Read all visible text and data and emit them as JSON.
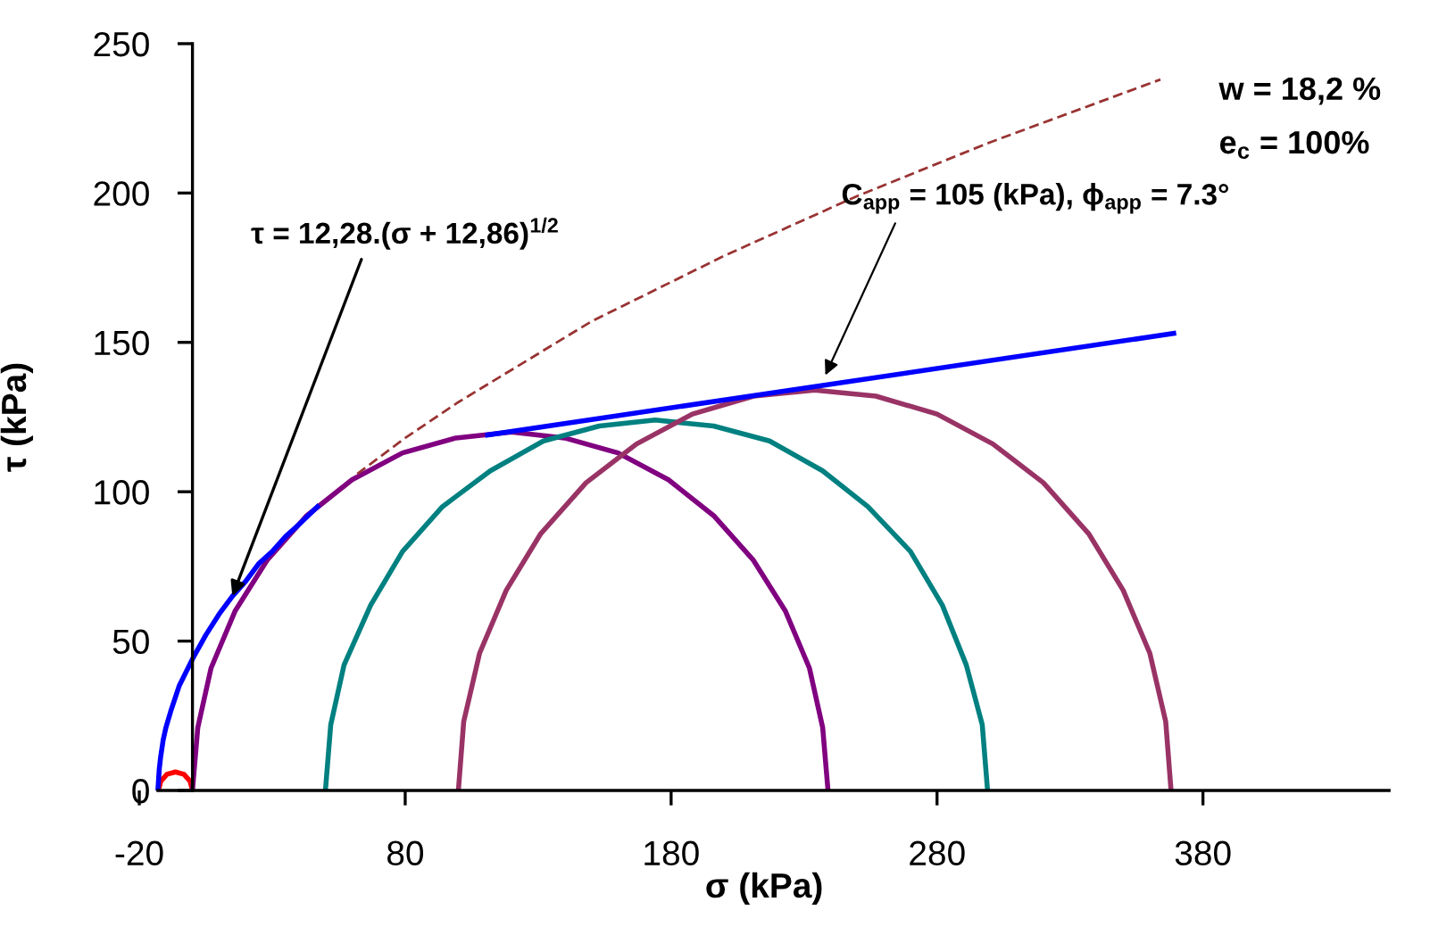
{
  "chart_data": {
    "type": "line",
    "xlabel": "σ (kPa)",
    "ylabel": "τ (kPa)",
    "xlim": [
      -20,
      450
    ],
    "ylim": [
      0,
      250
    ],
    "xticks": [
      -20,
      80,
      180,
      280,
      380
    ],
    "yticks": [
      0,
      50,
      100,
      150,
      200,
      250
    ],
    "grid": false,
    "legend": false,
    "marker": "none",
    "series": [
      {
        "color": "#ff0000",
        "x": [
          -12.8,
          -11.9,
          -9.6,
          -6.4,
          -3.2,
          -0.9,
          0
        ],
        "values": [
          0,
          3.1,
          5.4,
          6.2,
          5.4,
          3.1,
          0
        ]
      },
      {
        "color": "#800080",
        "x": [
          0,
          2,
          7,
          16,
          28,
          43,
          60,
          79,
          99,
          120,
          140,
          160,
          179,
          196,
          211,
          223,
          232,
          237,
          239
        ],
        "values": [
          0,
          21,
          41,
          60,
          77,
          92,
          104,
          113,
          118,
          120,
          118,
          113,
          104,
          92,
          77,
          60,
          41,
          21,
          0
        ]
      },
      {
        "color": "#008080",
        "x": [
          50,
          52,
          57,
          67,
          79,
          94,
          112,
          132,
          153,
          174,
          196,
          217,
          237,
          254,
          270,
          282,
          291,
          297,
          299
        ],
        "values": [
          0,
          22,
          42,
          62,
          80,
          95,
          107,
          117,
          122,
          124,
          122,
          117,
          107,
          95,
          80,
          62,
          42,
          22,
          0
        ]
      },
      {
        "color": "#993366",
        "x": [
          100,
          102,
          108,
          118,
          131,
          148,
          167,
          188,
          211,
          234,
          257,
          280,
          301,
          320,
          337,
          350,
          360,
          366,
          368
        ],
        "values": [
          0,
          23,
          46,
          67,
          86,
          103,
          116,
          126,
          132,
          134,
          132,
          126,
          116,
          103,
          86,
          67,
          46,
          23,
          0
        ]
      },
      {
        "color": "#0000ff",
        "x": [
          -13,
          -12.5,
          -12,
          -11,
          -10,
          -8,
          -5,
          0,
          5,
          10,
          15,
          20,
          25,
          30,
          35,
          40,
          47
        ],
        "values": [
          0,
          7,
          11,
          17,
          21,
          27,
          35,
          44,
          52,
          59,
          65,
          70,
          76,
          80,
          85,
          89,
          95
        ]
      },
      {
        "color": "#0000ff",
        "x": [
          111,
          369
        ],
        "values": [
          119,
          153
        ]
      },
      {
        "color": "#993333",
        "line_style": "dashed",
        "x": [
          62,
          80,
          100,
          150,
          200,
          250,
          300,
          364
        ],
        "values": [
          106,
          118,
          130,
          157,
          179,
          199,
          217,
          238
        ]
      }
    ],
    "annotations": [
      {
        "text": "τ = 12,28.(σ + 12,86)$^{1/2}$",
        "x": 15,
        "y": 65
      },
      {
        "text": "C$_{app}$ = 105 (kPa), ϕ$_{app}$ = 7.3°",
        "x": 238,
        "y": 139
      },
      "w = 18,2 %",
      "e$_{c}$ = 100%"
    ]
  }
}
